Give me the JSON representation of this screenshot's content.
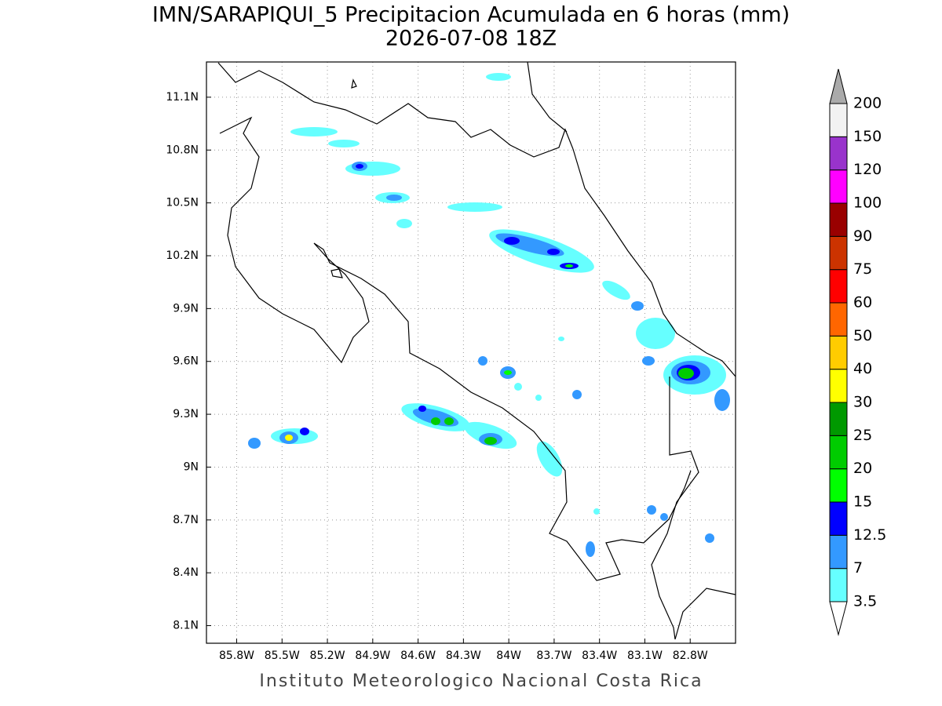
{
  "title": "IMN/SARAPIQUI_5 Precipitacion Acumulada en 6 horas (mm)",
  "subtitle": "2026-07-08 18Z",
  "footer": "Instituto Meteorologico Nacional Costa Rica",
  "map": {
    "xlim": [
      -86,
      -82.5
    ],
    "ylim": [
      8,
      11.3
    ],
    "grid": true,
    "xticks": [
      {
        "value": -85.8,
        "label": "85.8W"
      },
      {
        "value": -85.5,
        "label": "85.5W"
      },
      {
        "value": -85.2,
        "label": "85.2W"
      },
      {
        "value": -84.9,
        "label": "84.9W"
      },
      {
        "value": -84.6,
        "label": "84.6W"
      },
      {
        "value": -84.3,
        "label": "84.3W"
      },
      {
        "value": -84,
        "label": "84W"
      },
      {
        "value": -83.7,
        "label": "83.7W"
      },
      {
        "value": -83.4,
        "label": "83.4W"
      },
      {
        "value": -83.1,
        "label": "83.1W"
      },
      {
        "value": -82.8,
        "label": "82.8W"
      }
    ],
    "yticks": [
      {
        "value": 8.1,
        "label": "8.1N"
      },
      {
        "value": 8.4,
        "label": "8.4N"
      },
      {
        "value": 8.7,
        "label": "8.7N"
      },
      {
        "value": 9,
        "label": "9N"
      },
      {
        "value": 9.3,
        "label": "9.3N"
      },
      {
        "value": 9.6,
        "label": "9.6N"
      },
      {
        "value": 9.9,
        "label": "9.9N"
      },
      {
        "value": 10.2,
        "label": "10.2N"
      },
      {
        "value": 10.5,
        "label": "10.5N"
      },
      {
        "value": 10.8,
        "label": "10.8N"
      },
      {
        "value": 11.1,
        "label": "11.1N"
      }
    ]
  },
  "colorbar": {
    "levels": [
      3.5,
      7,
      12.5,
      15,
      20,
      25,
      30,
      40,
      50,
      60,
      75,
      90,
      100,
      120,
      150,
      200
    ],
    "colors": [
      "#66ffff",
      "#3399ff",
      "#0000ff",
      "#00ff00",
      "#00cc00",
      "#009900",
      "#ffff00",
      "#ffcc00",
      "#ff6600",
      "#ff0000",
      "#cc3300",
      "#990000",
      "#ff00ff",
      "#9933cc",
      "#f2f2f2"
    ],
    "under_color": "#ffffff",
    "over_color": "#aaaaaa"
  }
}
